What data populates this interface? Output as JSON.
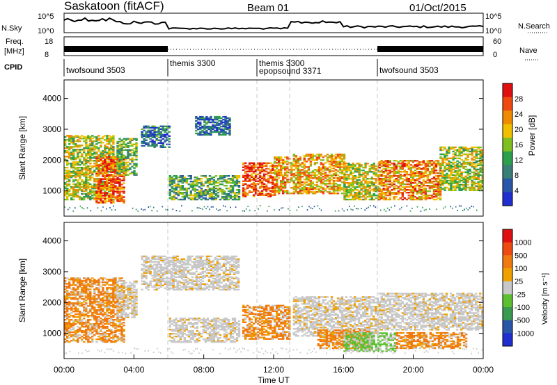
{
  "header": {
    "station": "Saskatoon (fitACF)",
    "beam": "Beam 01",
    "date": "01/Oct/2015"
  },
  "top_panels": {
    "nsky_label": "N.Sky",
    "nsearch_label": "N.Search",
    "freq_label": "Freq.",
    "freq_unit": "[MHz]",
    "nave_label": "Nave",
    "cpid_label": "CPID",
    "nsky_ticks": [
      "10^5",
      "10^0"
    ],
    "nsearch_ticks": [
      "10^5",
      "10^0"
    ],
    "freq_ticks": [
      "18",
      "8"
    ],
    "nave_ticks": [
      "60",
      "0"
    ],
    "cpid_programs": [
      {
        "label": "twofsound 3503",
        "start": 0,
        "end": 6
      },
      {
        "label": "themis 3300",
        "start": 6,
        "end": 11
      },
      {
        "label": "themis 3300",
        "start": 11,
        "end": 13
      },
      {
        "label": "epopsound 3371",
        "start": 11,
        "end": 18
      },
      {
        "label": "twofsound 3503",
        "start": 18,
        "end": 24
      }
    ]
  },
  "chart_data": [
    {
      "type": "heatmap",
      "panel": "power",
      "ylabel": "Slant Range [km]",
      "ylim": [
        180,
        4600
      ],
      "yticks": [
        "1000",
        "2000",
        "3000",
        "4000"
      ],
      "xlim": [
        0,
        24
      ],
      "colorbar_label": "Power [dB]",
      "colorbar_ticks": [
        "4",
        "8",
        "12",
        "16",
        "20",
        "24",
        "28"
      ],
      "colors": [
        "#1f2fd0",
        "#2856a8",
        "#3a7e78",
        "#2ca04c",
        "#7fc020",
        "#f0c000",
        "#f08a00",
        "#ef4a10",
        "#e01010"
      ],
      "regions": [
        {
          "t": [
            0.0,
            2.8
          ],
          "r": [
            700,
            2800
          ],
          "level": 0.55
        },
        {
          "t": [
            1.8,
            3.4
          ],
          "r": [
            600,
            2100
          ],
          "level": 0.85
        },
        {
          "t": [
            3.0,
            4.2
          ],
          "r": [
            1500,
            2700
          ],
          "level": 0.45
        },
        {
          "t": [
            4.4,
            6.0
          ],
          "r": [
            2400,
            3100
          ],
          "level": 0.2
        },
        {
          "t": [
            6.0,
            10.0
          ],
          "r": [
            700,
            1500
          ],
          "level": 0.4
        },
        {
          "t": [
            7.5,
            9.5
          ],
          "r": [
            2800,
            3400
          ],
          "level": 0.2
        },
        {
          "t": [
            10.2,
            12.0
          ],
          "r": [
            800,
            1900
          ],
          "level": 0.9
        },
        {
          "t": [
            12.0,
            13.0
          ],
          "r": [
            900,
            2100
          ],
          "level": 0.7
        },
        {
          "t": [
            13.1,
            16.0
          ],
          "r": [
            900,
            2200
          ],
          "level": 0.7
        },
        {
          "t": [
            16.0,
            18.0
          ],
          "r": [
            700,
            1900
          ],
          "level": 0.55
        },
        {
          "t": [
            18.0,
            21.5
          ],
          "r": [
            700,
            2000
          ],
          "level": 0.75
        },
        {
          "t": [
            21.5,
            24.0
          ],
          "r": [
            1000,
            2400
          ],
          "level": 0.55
        }
      ]
    },
    {
      "type": "heatmap",
      "panel": "velocity",
      "ylabel": "Slant Range [km]",
      "ylim": [
        180,
        4600
      ],
      "yticks": [
        "1000",
        "2000",
        "3000",
        "4000"
      ],
      "xlim": [
        0,
        24
      ],
      "xticks": [
        "00:00",
        "04:00",
        "08:00",
        "12:00",
        "16:00",
        "20:00",
        "00:00"
      ],
      "xlabel": "Time UT",
      "colorbar_label": "Velocity [m s⁻¹]",
      "colorbar_ticks": [
        "1000",
        "500",
        "100",
        "25",
        "-25",
        "-100",
        "-500",
        "-1000"
      ],
      "colors": [
        "#1f2fd0",
        "#2856a8",
        "#3a9a50",
        "#5cc030",
        "#c8c8c8",
        "#f0a000",
        "#f07a10",
        "#ef4a10",
        "#e01010"
      ],
      "regions": [
        {
          "t": [
            0.0,
            3.4
          ],
          "r": [
            700,
            2800
          ],
          "kind": "orange"
        },
        {
          "t": [
            3.0,
            4.2
          ],
          "r": [
            1500,
            2700
          ],
          "kind": "gray"
        },
        {
          "t": [
            4.4,
            10.0
          ],
          "r": [
            2400,
            3500
          ],
          "kind": "gray"
        },
        {
          "t": [
            6.0,
            10.0
          ],
          "r": [
            700,
            1500
          ],
          "kind": "gray"
        },
        {
          "t": [
            10.2,
            12.9
          ],
          "r": [
            800,
            1900
          ],
          "kind": "orange"
        },
        {
          "t": [
            13.1,
            18.0
          ],
          "r": [
            900,
            2200
          ],
          "kind": "gray"
        },
        {
          "t": [
            14.5,
            17.5
          ],
          "r": [
            500,
            1100
          ],
          "kind": "orange"
        },
        {
          "t": [
            16.0,
            19.0
          ],
          "r": [
            400,
            1000
          ],
          "kind": "green"
        },
        {
          "t": [
            18.0,
            24.0
          ],
          "r": [
            1100,
            2300
          ],
          "kind": "gray"
        },
        {
          "t": [
            19.0,
            23.0
          ],
          "r": [
            500,
            1000
          ],
          "kind": "orange"
        }
      ]
    }
  ]
}
